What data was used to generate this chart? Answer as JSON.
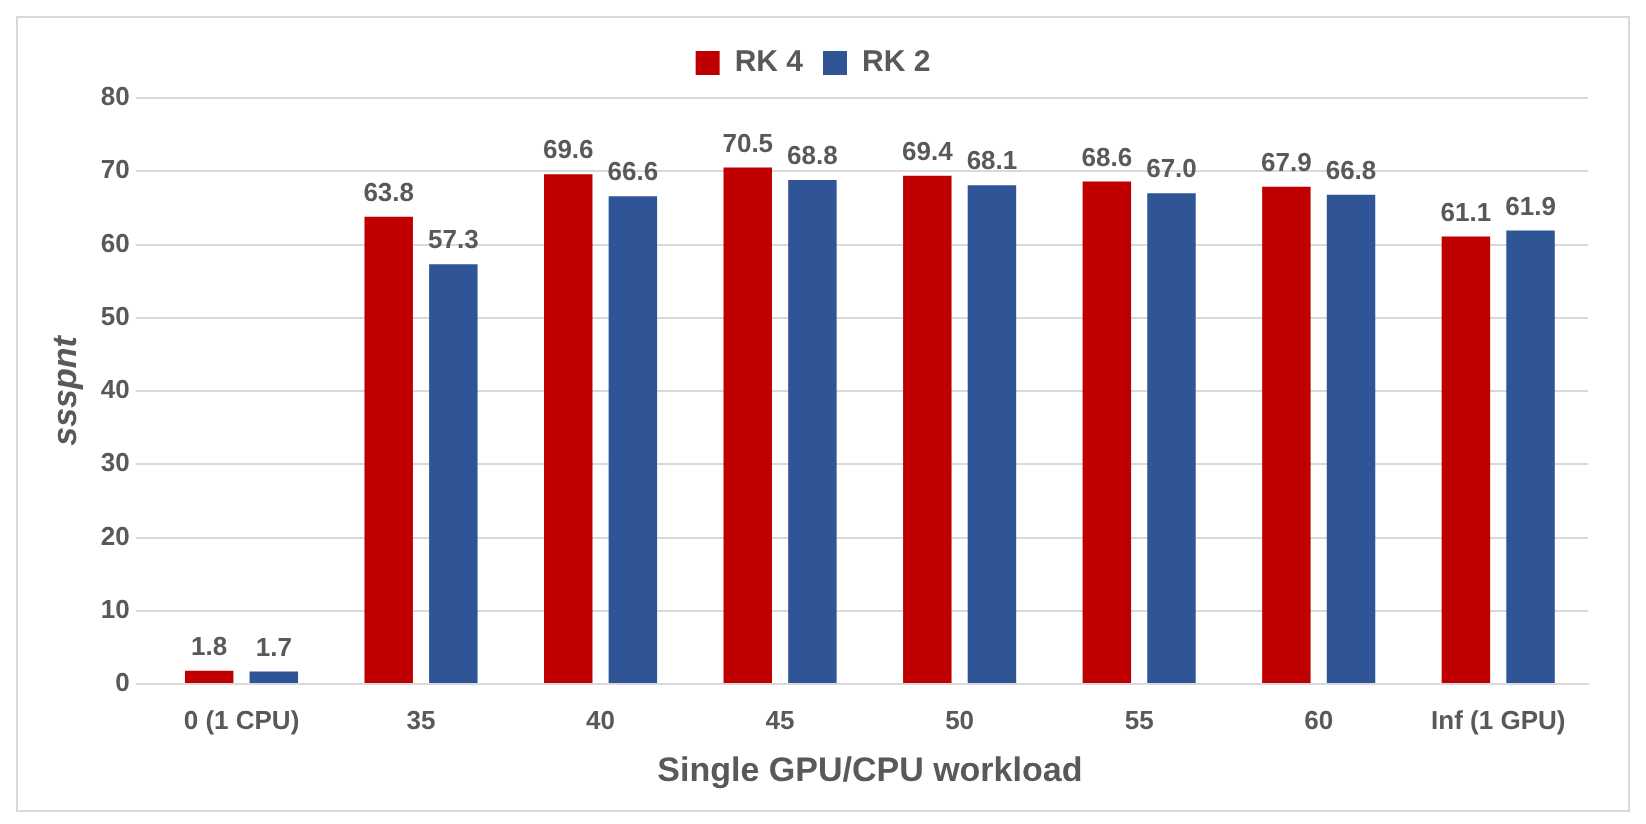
{
  "chart_data": {
    "type": "bar",
    "categories": [
      "0 (1 CPU)",
      "35",
      "40",
      "45",
      "50",
      "55",
      "60",
      "Inf (1 GPU)"
    ],
    "series": [
      {
        "name": "RK 4",
        "color": "#c00000",
        "values": [
          1.8,
          63.8,
          69.6,
          70.5,
          69.4,
          68.6,
          67.9,
          61.1
        ],
        "value_labels": [
          "1.8",
          "63.8",
          "69.6",
          "70.5",
          "69.4",
          "68.6",
          "67.9",
          "61.1"
        ]
      },
      {
        "name": "RK 2",
        "color": "#2f5597",
        "values": [
          1.7,
          57.3,
          66.6,
          68.8,
          68.1,
          67.0,
          66.8,
          61.9
        ],
        "value_labels": [
          "1.7",
          "57.3",
          "66.6",
          "68.8",
          "68.1",
          "67.0",
          "66.8",
          "61.9"
        ]
      }
    ],
    "xlabel": "Single GPU/CPU workload",
    "ylabel": "ssspnt",
    "ylim": [
      0,
      80
    ],
    "yticks": [
      0,
      10,
      20,
      30,
      40,
      50,
      60,
      70,
      80
    ],
    "grid": "y",
    "legend": "top"
  }
}
